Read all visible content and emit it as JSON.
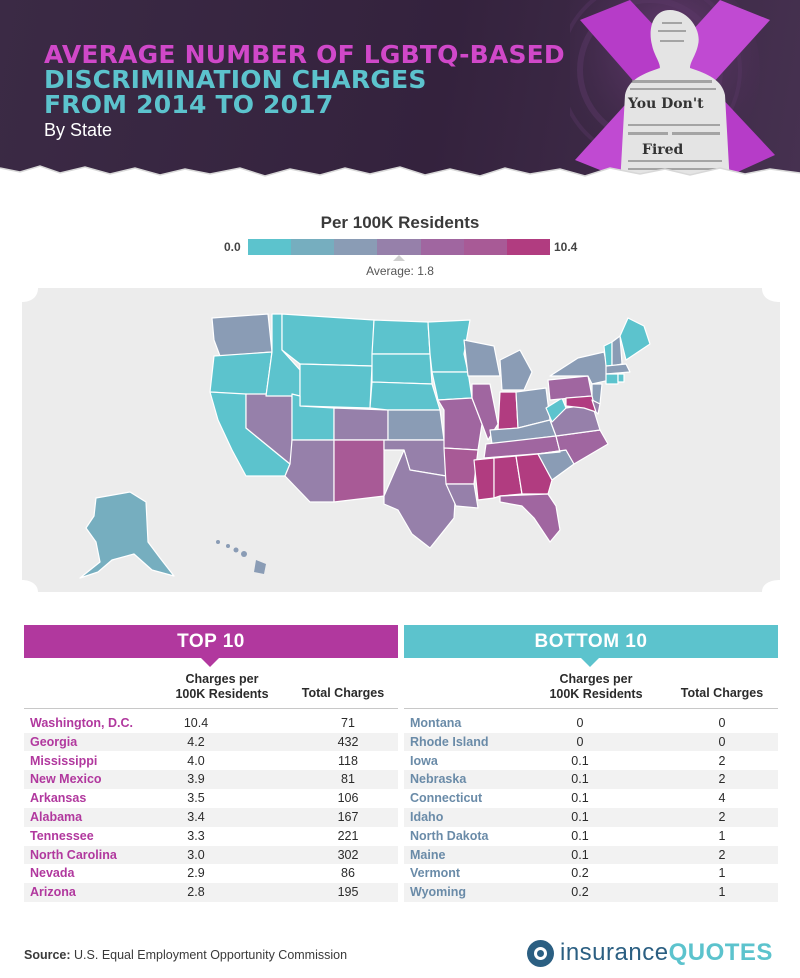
{
  "header": {
    "title_line1": "AVERAGE NUMBER OF LGBTQ-BASED",
    "title_line2": "DISCRIMINATION CHARGES",
    "title_line3": "FROM 2014 TO 2017",
    "subtitle": "By State",
    "art_text_1": "You Don't",
    "art_text_2": "Fired"
  },
  "legend": {
    "title": "Per 100K Residents",
    "min": "0.0",
    "max": "10.4",
    "average": "Average: 1.8",
    "colors": [
      "#5cc3cd",
      "#76aebf",
      "#8a9cb5",
      "#9680aa",
      "#a066a0",
      "#a85a96",
      "#b13c80"
    ]
  },
  "map": {
    "title": "US states shaded by charges per 100K residents"
  },
  "top10": {
    "heading": "TOP  10",
    "accent": "#b1389e",
    "col_rate": "Charges per 100K Residents",
    "col_rate_l1": "Charges per",
    "col_rate_l2": "100K Residents",
    "col_total": "Total Charges",
    "rows": [
      {
        "state": "Washington, D.C.",
        "rate": "10.4",
        "total": "71"
      },
      {
        "state": "Georgia",
        "rate": "4.2",
        "total": "432"
      },
      {
        "state": "Mississippi",
        "rate": "4.0",
        "total": "118"
      },
      {
        "state": "New Mexico",
        "rate": "3.9",
        "total": "81"
      },
      {
        "state": "Arkansas",
        "rate": "3.5",
        "total": "106"
      },
      {
        "state": "Alabama",
        "rate": "3.4",
        "total": "167"
      },
      {
        "state": "Tennessee",
        "rate": "3.3",
        "total": "221"
      },
      {
        "state": "North Carolina",
        "rate": "3.0",
        "total": "302"
      },
      {
        "state": "Nevada",
        "rate": "2.9",
        "total": "86"
      },
      {
        "state": "Arizona",
        "rate": "2.8",
        "total": "195"
      }
    ]
  },
  "bottom10": {
    "heading": "BOTTOM  10",
    "accent": "#5cc3cd",
    "col_rate": "Charges per 100K Residents",
    "col_rate_l1": "Charges per",
    "col_rate_l2": "100K Residents",
    "col_total": "Total Charges",
    "rows": [
      {
        "state": "Montana",
        "rate": "0",
        "total": "0"
      },
      {
        "state": "Rhode Island",
        "rate": "0",
        "total": "0"
      },
      {
        "state": "Iowa",
        "rate": "0.1",
        "total": "2"
      },
      {
        "state": "Nebraska",
        "rate": "0.1",
        "total": "2"
      },
      {
        "state": "Connecticut",
        "rate": "0.1",
        "total": "4"
      },
      {
        "state": "Idaho",
        "rate": "0.1",
        "total": "2"
      },
      {
        "state": "North Dakota",
        "rate": "0.1",
        "total": "1"
      },
      {
        "state": "Maine",
        "rate": "0.1",
        "total": "2"
      },
      {
        "state": "Vermont",
        "rate": "0.2",
        "total": "1"
      },
      {
        "state": "Wyoming",
        "rate": "0.2",
        "total": "1"
      }
    ]
  },
  "footer": {
    "source_label": "Source:",
    "source_text": "U.S. Equal Employment Opportunity Commission",
    "logo_part1": "insurance",
    "logo_part2": "QUOTES"
  }
}
